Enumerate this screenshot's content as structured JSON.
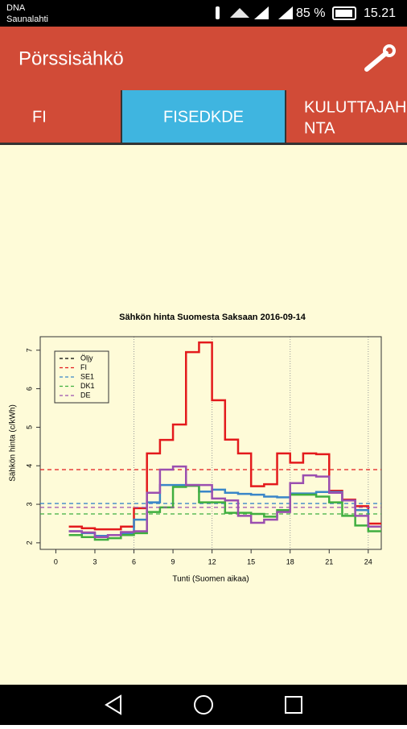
{
  "status_bar": {
    "carrier": "DNA",
    "network": "Saunalahti",
    "battery": "85 %",
    "time": "15.21"
  },
  "app_bar": {
    "title": "Pörssisähkö"
  },
  "tabs": [
    {
      "label": [
        "FI"
      ]
    },
    {
      "label": [
        "FISEDKDE"
      ]
    },
    {
      "label": [
        "KULUTTAJAH",
        "NTA"
      ]
    }
  ],
  "chart_data": {
    "type": "step",
    "title": "Sähkön hinta Suomesta Saksaan 2016-09-14",
    "x_label": "Tunti (Suomen aikaa)",
    "y_label": "Sähkön hinta (c/kWh)",
    "x": [
      1,
      2,
      3,
      4,
      5,
      6,
      7,
      8,
      9,
      10,
      11,
      12,
      13,
      14,
      15,
      16,
      17,
      18,
      19,
      20,
      21,
      22,
      23,
      24
    ],
    "series": [
      {
        "name": "Öljy",
        "color": "#000000",
        "values": [
          null,
          null,
          null,
          null,
          null,
          null,
          null,
          null,
          null,
          null,
          null,
          null,
          null,
          null,
          null,
          null,
          null,
          null,
          null,
          null,
          null,
          null,
          null,
          null
        ]
      },
      {
        "name": "FI",
        "color": "#e31a1c",
        "mean": 3.9,
        "values": [
          2.42,
          2.38,
          2.35,
          2.35,
          2.42,
          2.9,
          4.32,
          4.67,
          5.07,
          6.95,
          7.2,
          5.7,
          4.68,
          4.32,
          3.47,
          3.52,
          4.32,
          4.08,
          4.32,
          4.3,
          3.35,
          3.12,
          2.95,
          2.5
        ]
      },
      {
        "name": "SE1",
        "color": "#3a86c8",
        "mean": 3.02,
        "values": [
          2.3,
          2.25,
          2.18,
          2.2,
          2.25,
          2.6,
          3.05,
          3.5,
          3.5,
          3.5,
          3.33,
          3.38,
          3.3,
          3.27,
          3.25,
          3.2,
          3.18,
          3.28,
          3.28,
          3.32,
          3.32,
          3.1,
          2.85,
          2.42
        ]
      },
      {
        "name": "DK1",
        "color": "#3fae3f",
        "mean": 2.75,
        "values": [
          2.2,
          2.15,
          2.08,
          2.12,
          2.2,
          2.25,
          2.8,
          2.92,
          3.45,
          3.48,
          3.05,
          3.05,
          2.78,
          2.78,
          2.75,
          2.68,
          2.85,
          3.25,
          3.25,
          3.2,
          3.05,
          2.7,
          2.45,
          2.3
        ]
      },
      {
        "name": "DE",
        "color": "#9b4fb0",
        "mean": 2.92,
        "values": [
          2.3,
          2.27,
          2.15,
          2.2,
          2.28,
          2.3,
          3.3,
          3.9,
          3.98,
          3.5,
          3.5,
          3.15,
          3.1,
          2.7,
          2.52,
          2.6,
          2.8,
          3.55,
          3.75,
          3.72,
          3.3,
          3.1,
          2.7,
          2.42
        ]
      }
    ],
    "xlim": [
      -1.2,
      25
    ],
    "ylim": [
      1.83,
      7.35
    ],
    "xticks": [
      0,
      3,
      6,
      9,
      12,
      15,
      18,
      21,
      24
    ],
    "yticks": [
      2,
      3,
      4,
      5,
      6,
      7
    ],
    "vgrid": [
      6,
      12,
      18,
      24
    ],
    "legend": "top-left"
  }
}
